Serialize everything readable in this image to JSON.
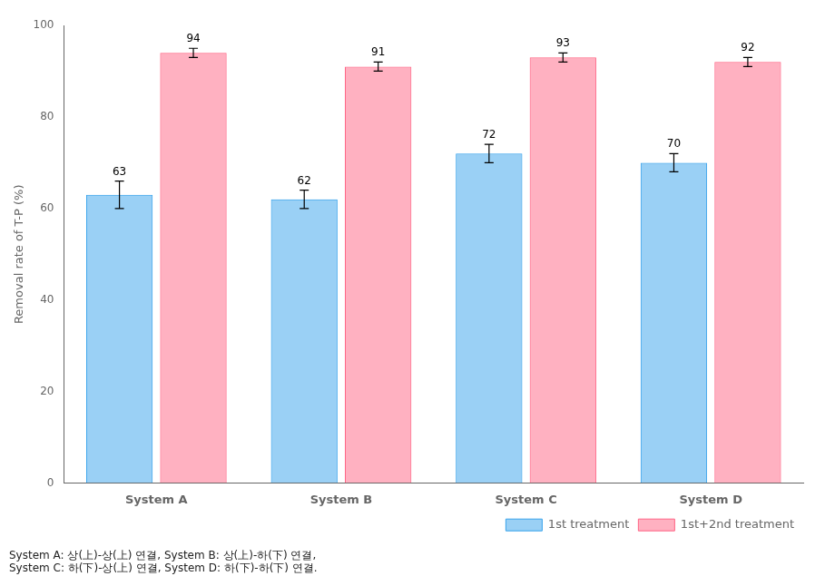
{
  "chart_data": {
    "type": "bar",
    "categories": [
      "System A",
      "System B",
      "System C",
      "System D"
    ],
    "series": [
      {
        "name": "1st treatment",
        "values": [
          63,
          62,
          72,
          70
        ],
        "errors": [
          3,
          2,
          2,
          2
        ]
      },
      {
        "name": "1st+2nd treatment",
        "values": [
          94,
          91,
          93,
          92
        ],
        "errors": [
          1,
          1,
          1,
          1
        ]
      }
    ],
    "ylabel": "Removal rate of T-P (%)",
    "ylim": [
      0,
      100
    ],
    "yticks": [
      0,
      20,
      40,
      60,
      80,
      100
    ],
    "grid": false,
    "legend": "lower right",
    "data_labels": true,
    "annotations": [
      "System A: 상(上)-상(上) 연결, System B: 상(上)-하(下) 연결,",
      "System C: 하(下)-상(上) 연결, System D: 하(下)-하(下) 연결."
    ]
  }
}
